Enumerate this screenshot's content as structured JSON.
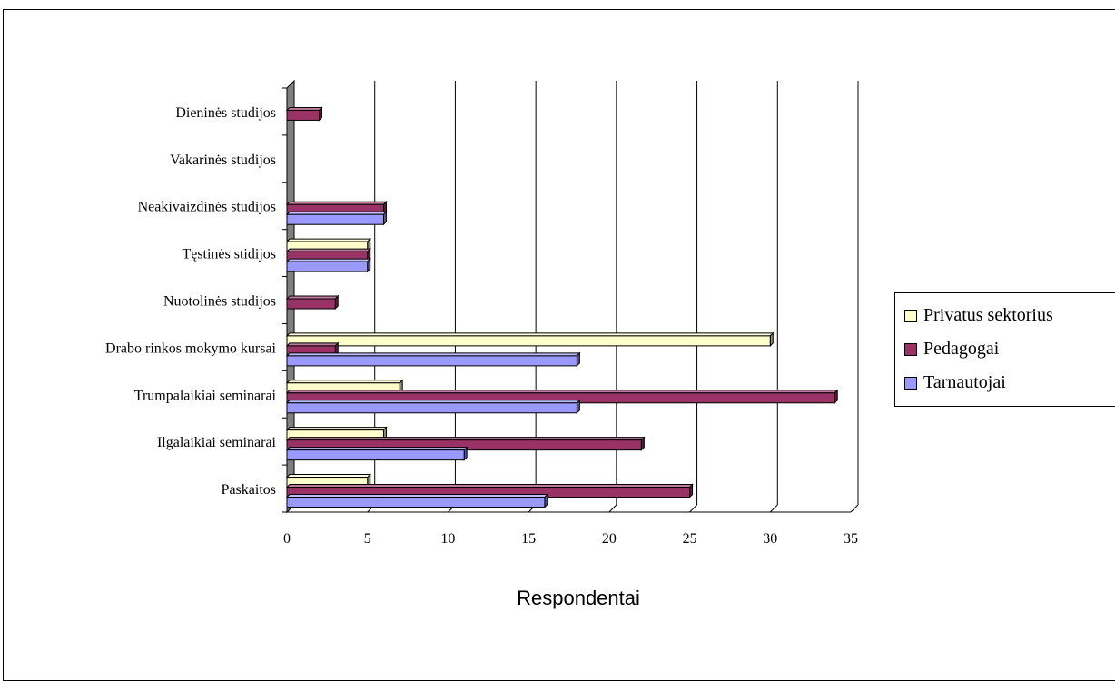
{
  "chart_data": {
    "type": "bar",
    "orientation": "horizontal",
    "style": "3d",
    "categories": [
      "Dieninės studijos",
      "Vakarinės studijos",
      "Neakivaizdinės studijos",
      "Tęstinės stidijos",
      "Nuotolinės studijos",
      "Drabo rinkos mokymo kursai",
      "Trumpalaikiai seminarai",
      "Ilgalaikiai seminarai",
      "Paskaitos"
    ],
    "series": [
      {
        "name": "Privatus sektorius",
        "color": "#ffffcc",
        "values": [
          0,
          0,
          0,
          5,
          0,
          30,
          7,
          6,
          5
        ]
      },
      {
        "name": "Pedagogai",
        "color": "#993366",
        "values": [
          2,
          0,
          6,
          5,
          3,
          3,
          34,
          22,
          25
        ]
      },
      {
        "name": "Tarnautojai",
        "color": "#9999ff",
        "values": [
          0,
          0,
          6,
          5,
          0,
          18,
          18,
          11,
          16
        ]
      }
    ],
    "xlabel": "Respondentai",
    "ylabel": "",
    "xlim": [
      0,
      35
    ],
    "xticks": [
      0,
      5,
      10,
      15,
      20,
      25,
      30,
      35
    ],
    "grid": "vertical",
    "legend_position": "right"
  }
}
